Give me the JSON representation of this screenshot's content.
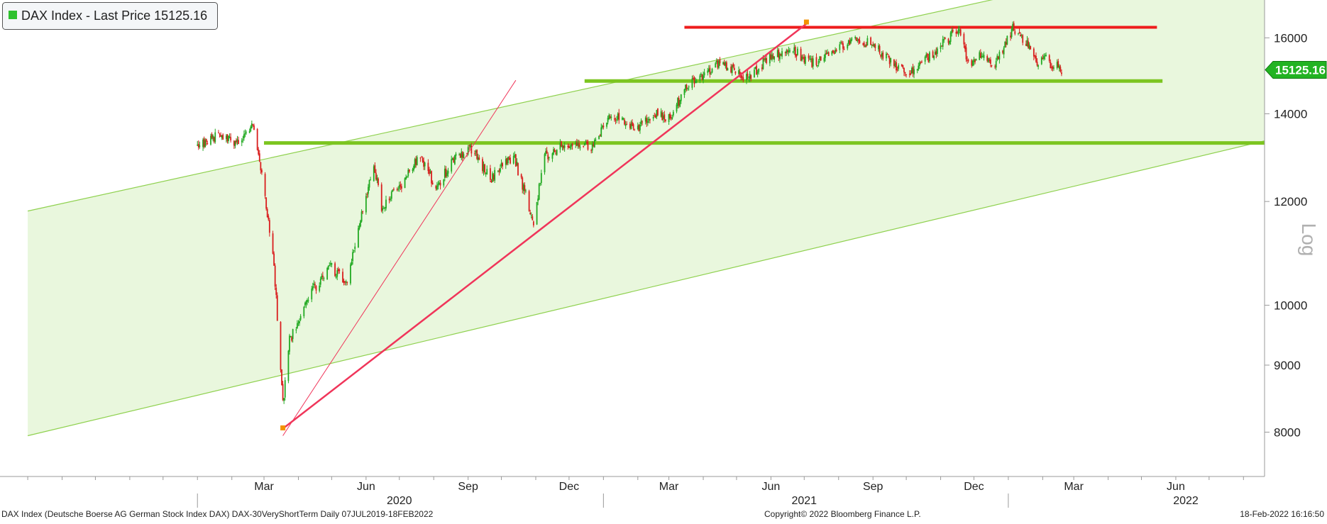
{
  "chart_data": {
    "type": "candlestick",
    "title": "DAX Index - Last Price 15125.16",
    "legend_label": "DAX Index - Last Price 15125.16",
    "legend_color": "#2ec22e",
    "scale": "log",
    "scale_label": "Log",
    "last_price_label": "15125.16",
    "last_price": 15125.16,
    "colors": {
      "up": "#22a922",
      "down": "#d91e1e",
      "channel_fill": "#e9f7dd",
      "channel_line": "#8fd14f",
      "support_line": "#7cc520",
      "resistance_line": "#ee1c1c",
      "trend_line": "#f0355a",
      "marker": "#f39200"
    },
    "y_ticks": [
      8000,
      9000,
      10000,
      12000,
      14000,
      16000
    ],
    "ylim": [
      7400,
      17100
    ],
    "xlim": [
      "2019-07-07",
      "2022-08-20"
    ],
    "x_month_labels": [
      {
        "date": "2020-03-01",
        "label": "Mar"
      },
      {
        "date": "2020-06-01",
        "label": "Jun"
      },
      {
        "date": "2020-09-01",
        "label": "Sep"
      },
      {
        "date": "2020-12-01",
        "label": "Dec"
      },
      {
        "date": "2021-03-01",
        "label": "Mar"
      },
      {
        "date": "2021-06-01",
        "label": "Jun"
      },
      {
        "date": "2021-09-01",
        "label": "Sep"
      },
      {
        "date": "2021-12-01",
        "label": "Dec"
      },
      {
        "date": "2022-03-01",
        "label": "Mar"
      },
      {
        "date": "2022-06-01",
        "label": "Jun"
      }
    ],
    "x_year_labels": [
      {
        "date": "2020-07-01",
        "label": "2020"
      },
      {
        "date": "2021-07-01",
        "label": "2021"
      },
      {
        "date": "2022-06-10",
        "label": "2022"
      }
    ],
    "price_path": [
      [
        "2020-01-01",
        13200
      ],
      [
        "2020-01-20",
        13500
      ],
      [
        "2020-02-05",
        13300
      ],
      [
        "2020-02-19",
        13750
      ],
      [
        "2020-02-25",
        13000
      ],
      [
        "2020-03-03",
        11900
      ],
      [
        "2020-03-10",
        10700
      ],
      [
        "2020-03-16",
        9000
      ],
      [
        "2020-03-18",
        8400
      ],
      [
        "2020-03-24",
        9400
      ],
      [
        "2020-04-01",
        9700
      ],
      [
        "2020-04-15",
        10300
      ],
      [
        "2020-04-30",
        10700
      ],
      [
        "2020-05-14",
        10400
      ],
      [
        "2020-05-27",
        11600
      ],
      [
        "2020-06-08",
        12800
      ],
      [
        "2020-06-15",
        11900
      ],
      [
        "2020-07-01",
        12300
      ],
      [
        "2020-07-20",
        13000
      ],
      [
        "2020-08-03",
        12300
      ],
      [
        "2020-08-20",
        12950
      ],
      [
        "2020-09-03",
        13200
      ],
      [
        "2020-09-21",
        12500
      ],
      [
        "2020-10-12",
        13000
      ],
      [
        "2020-10-30",
        11600
      ],
      [
        "2020-11-09",
        13000
      ],
      [
        "2020-12-01",
        13300
      ],
      [
        "2020-12-21",
        13200
      ],
      [
        "2021-01-08",
        14000
      ],
      [
        "2021-01-29",
        13600
      ],
      [
        "2021-02-15",
        14000
      ],
      [
        "2021-03-01",
        13900
      ],
      [
        "2021-03-18",
        14700
      ],
      [
        "2021-04-16",
        15300
      ],
      [
        "2021-05-12",
        14900
      ],
      [
        "2021-05-31",
        15500
      ],
      [
        "2021-06-18",
        15700
      ],
      [
        "2021-07-08",
        15300
      ],
      [
        "2021-08-13",
        15900
      ],
      [
        "2021-09-01",
        15850
      ],
      [
        "2021-09-20",
        15200
      ],
      [
        "2021-10-04",
        15000
      ],
      [
        "2021-11-17",
        16250
      ],
      [
        "2021-11-26",
        15250
      ],
      [
        "2021-12-10",
        15600
      ],
      [
        "2021-12-20",
        15250
      ],
      [
        "2022-01-05",
        16250
      ],
      [
        "2022-01-18",
        15800
      ],
      [
        "2022-01-27",
        15300
      ],
      [
        "2022-02-03",
        15500
      ],
      [
        "2022-02-08",
        15250
      ],
      [
        "2022-02-14",
        15350
      ],
      [
        "2022-02-18",
        15125
      ]
    ],
    "channel": {
      "upper": [
        [
          "2019-08-01",
          11800
        ],
        [
          "2022-08-20",
          19000
        ]
      ],
      "lower": [
        [
          "2019-08-01",
          7950
        ],
        [
          "2022-08-20",
          13350
        ]
      ]
    },
    "trend_lines": [
      {
        "points": [
          [
            "2020-03-18",
            7950
          ],
          [
            "2020-10-14",
            14850
          ]
        ],
        "width": 1
      },
      {
        "points": [
          [
            "2020-03-18",
            8050
          ],
          [
            "2021-07-03",
            16400
          ]
        ],
        "width": 2.5
      }
    ],
    "horizontal_levels": [
      {
        "value": 13300,
        "from": "2020-03-01",
        "to": "2022-08-20",
        "role": "support",
        "width": 5
      },
      {
        "value": 14830,
        "from": "2020-12-15",
        "to": "2022-05-20",
        "role": "support",
        "width": 5
      },
      {
        "value": 16300,
        "from": "2021-03-15",
        "to": "2022-05-15",
        "role": "resistance",
        "width": 4
      }
    ],
    "markers": [
      {
        "date": "2020-03-18",
        "value": 8060
      },
      {
        "date": "2021-07-03",
        "value": 16450
      }
    ]
  },
  "footer": {
    "left": "DAX Index (Deutsche Boerse AG German Stock Index DAX) DAX-30VeryShortTerm  Daily 07JUL2019-18FEB2022",
    "center": "Copyright© 2022 Bloomberg Finance L.P.",
    "right": "18-Feb-2022 16:16:50"
  }
}
